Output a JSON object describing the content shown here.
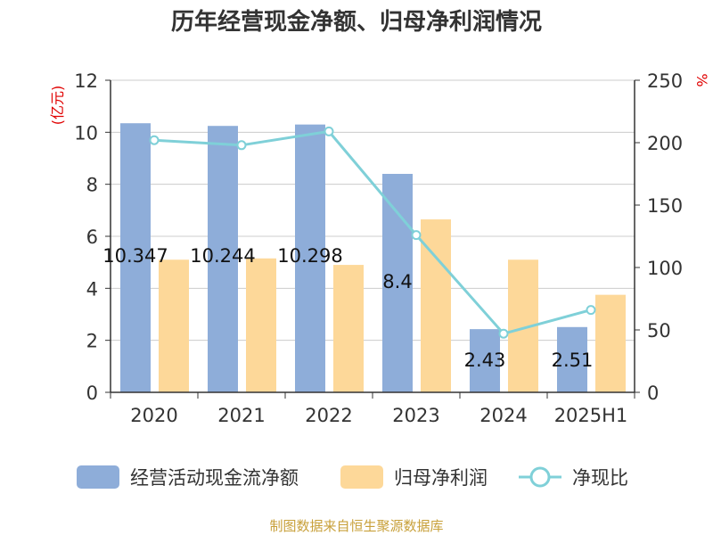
{
  "chart_data": {
    "type": "bar",
    "title": "历年经营现金净额、归母净利润情况",
    "categories": [
      "2020",
      "2021",
      "2022",
      "2023",
      "2024",
      "2025H1"
    ],
    "y_left": {
      "unit": "(亿元)",
      "ylim": [
        0,
        12
      ],
      "ticks": [
        "0",
        "2",
        "4",
        "6",
        "8",
        "10",
        "12"
      ]
    },
    "y_right": {
      "unit": "%",
      "ylim": [
        0,
        250
      ],
      "ticks": [
        "0",
        "50",
        "100",
        "150",
        "200",
        "250"
      ]
    },
    "series": [
      {
        "name": "经营活动现金流净额",
        "type": "bar",
        "axis": "left",
        "color": "#8eadd9",
        "values": [
          10.347,
          10.244,
          10.298,
          8.4,
          2.43,
          2.51
        ],
        "labels": [
          "10.347",
          "10.244",
          "10.298",
          "8.4",
          "2.43",
          "2.51"
        ]
      },
      {
        "name": "归母净利润",
        "type": "bar",
        "axis": "left",
        "color": "#fdd899",
        "values": [
          5.1,
          5.15,
          4.9,
          6.65,
          5.1,
          3.75
        ]
      },
      {
        "name": "净现比",
        "type": "line",
        "axis": "right",
        "color": "#7fd0d8",
        "values": [
          202,
          198,
          209,
          126,
          47,
          66
        ]
      }
    ],
    "grid": true,
    "legend_position": "bottom"
  },
  "source": "制图数据来自恒生聚源数据库"
}
